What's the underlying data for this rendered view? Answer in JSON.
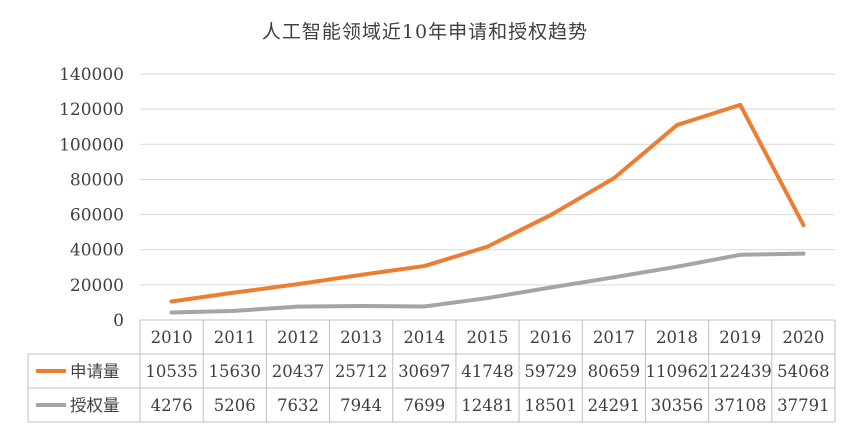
{
  "chart_data": {
    "type": "line",
    "title": "人工智能领域近10年申请和授权趋势",
    "categories": [
      "2010",
      "2011",
      "2012",
      "2013",
      "2014",
      "2015",
      "2016",
      "2017",
      "2018",
      "2019",
      "2020"
    ],
    "y_ticks": [
      "0",
      "20000",
      "40000",
      "60000",
      "80000",
      "100000",
      "120000",
      "140000"
    ],
    "ylim": [
      0,
      140000
    ],
    "grid": true,
    "legend_placement": "data-table",
    "series": [
      {
        "name": "申请量",
        "color": "#ED7D31",
        "values": [
          10535,
          15630,
          20437,
          25712,
          30697,
          41748,
          59729,
          80659,
          110962,
          122439,
          54068
        ],
        "labels": [
          "10535",
          "15630",
          "20437",
          "25712",
          "30697",
          "41748",
          "59729",
          "80659",
          "110962",
          "122439",
          "54068"
        ]
      },
      {
        "name": "授权量",
        "color": "#A5A5A5",
        "values": [
          4276,
          5206,
          7632,
          7944,
          7699,
          12481,
          18501,
          24291,
          30356,
          37108,
          37791
        ],
        "labels": [
          "4276",
          "5206",
          "7632",
          "7944",
          "7699",
          "12481",
          "18501",
          "24291",
          "30356",
          "37108",
          "37791"
        ]
      }
    ]
  }
}
